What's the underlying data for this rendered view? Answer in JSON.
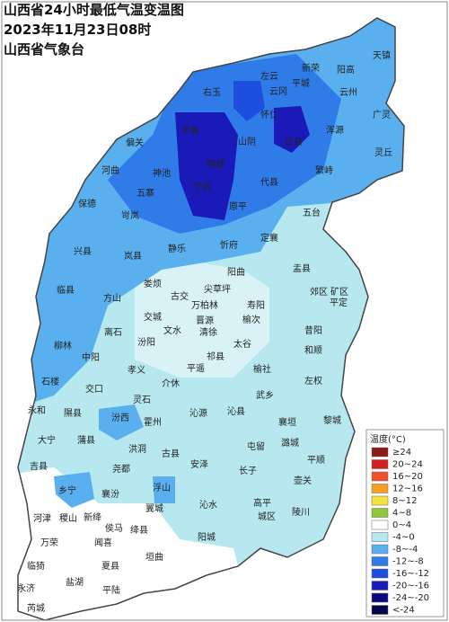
{
  "header": {
    "title": "山西省24小时最低气温变温图",
    "time": "2023年11月23日08时",
    "source": "山西省气象台"
  },
  "map": {
    "labels": [
      "天镇",
      "阳高",
      "新荣",
      "左云",
      "云冈",
      "平城",
      "云州",
      "广灵",
      "浑源",
      "灵丘",
      "怀仁",
      "应县",
      "山阴",
      "右玉",
      "平鲁",
      "朔城",
      "偏关",
      "河曲",
      "神池",
      "五寨",
      "宁武",
      "保德",
      "岢岚",
      "原平",
      "代县",
      "繁峙",
      "五台",
      "静乐",
      "忻府",
      "定襄",
      "兴县",
      "岚县",
      "盂县",
      "阳曲",
      "娄烦",
      "古交",
      "尖草坪",
      "郊区",
      "矿区",
      "平定",
      "寿阳",
      "临县",
      "方山",
      "万柏林",
      "晋源",
      "清徐",
      "榆次",
      "昔阳",
      "交城",
      "离石",
      "柳林",
      "中阳",
      "汾阳",
      "文水",
      "太谷",
      "祁县",
      "和顺",
      "孝义",
      "平遥",
      "榆社",
      "石楼",
      "交口",
      "介休",
      "左权",
      "灵石",
      "武乡",
      "沁县",
      "沁源",
      "永和",
      "隰县",
      "汾西",
      "霍州",
      "襄垣",
      "黎城",
      "大宁",
      "蒲县",
      "洪洞",
      "古县",
      "屯留",
      "潞城",
      "吉县",
      "尧都",
      "安泽",
      "长子",
      "平顺",
      "壶关",
      "乡宁",
      "襄汾",
      "浮山",
      "高平",
      "陵川",
      "河津",
      "稷山",
      "新绛",
      "侯马",
      "翼城",
      "沁水",
      "城区",
      "绛县",
      "阳城",
      "万荣",
      "闻喜",
      "垣曲",
      "临猗",
      "夏县",
      "永济",
      "盐湖",
      "平陆",
      "芮城"
    ]
  },
  "legend": {
    "title": "温度(°C)",
    "items": [
      {
        "label": "≥24",
        "color": "#8b1a1a"
      },
      {
        "label": "20~24",
        "color": "#d42020"
      },
      {
        "label": "16~20",
        "color": "#f0502a"
      },
      {
        "label": "12~16",
        "color": "#f5a020"
      },
      {
        "label": "8~12",
        "color": "#f5e040"
      },
      {
        "label": "4~8",
        "color": "#90c83a"
      },
      {
        "label": "0~4",
        "color": "#ffffff"
      },
      {
        "label": "-4~0",
        "color": "#b7e8f0"
      },
      {
        "label": "-8~-4",
        "color": "#5ab0ee"
      },
      {
        "label": "-12~-8",
        "color": "#2f7be8"
      },
      {
        "label": "-16~-12",
        "color": "#1e4ee0"
      },
      {
        "label": "-20~-16",
        "color": "#1a1ab8"
      },
      {
        "label": "-24~-20",
        "color": "#0a0a80"
      },
      {
        "label": "<-24",
        "color": "#05054a"
      }
    ]
  }
}
